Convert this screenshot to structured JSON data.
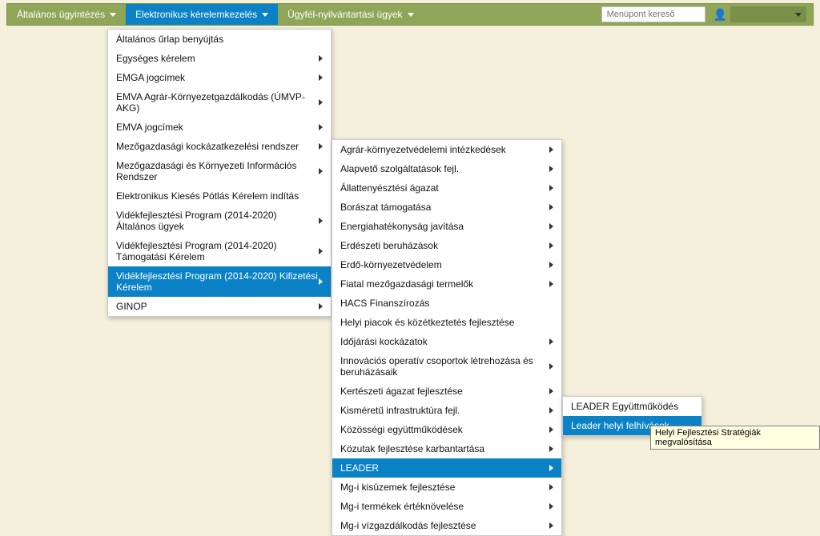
{
  "nav": {
    "item1": "Általános ügyintézés",
    "item2": "Elektronikus kérelemkezelés",
    "item3": "Ügyfél-nyilvántartási ügyek",
    "search_placeholder": "Menüpont kereső"
  },
  "menu1": [
    {
      "label": "Általános űrlap benyújtás",
      "sub": false
    },
    {
      "label": "Egységes kérelem",
      "sub": true
    },
    {
      "label": "EMGA jogcímek",
      "sub": true
    },
    {
      "label": "EMVA Agrár-Környezetgazdálkodás (ÚMVP-AKG)",
      "sub": true
    },
    {
      "label": "EMVA jogcímek",
      "sub": true
    },
    {
      "label": "Mezőgazdasági kockázatkezelési rendszer",
      "sub": true
    },
    {
      "label": "Mezőgazdasági és Környezeti Információs Rendszer",
      "sub": true
    },
    {
      "label": "Elektronikus Kiesés Pótlás Kérelem indítás",
      "sub": false
    },
    {
      "label": "Vidékfejlesztési Program (2014-2020) Általános ügyek",
      "sub": true
    },
    {
      "label": "Vidékfejlesztési Program (2014-2020) Támogatási Kérelem",
      "sub": true
    },
    {
      "label": "Vidékfejlesztési Program (2014-2020) Kifizetési Kérelem",
      "sub": true,
      "selected": true
    },
    {
      "label": "GINOP",
      "sub": true
    }
  ],
  "menu2": [
    {
      "label": "Agrár-környezetvédelemi intézkedések",
      "sub": true
    },
    {
      "label": "Alapvető szolgáltatások fejl.",
      "sub": true
    },
    {
      "label": "Állattenyésztési ágazat",
      "sub": true
    },
    {
      "label": "Borászat támogatása",
      "sub": true
    },
    {
      "label": "Energiahatékonyság javítása",
      "sub": true
    },
    {
      "label": "Erdészeti beruházások",
      "sub": true
    },
    {
      "label": "Erdő-környezetvédelem",
      "sub": true
    },
    {
      "label": "Fiatal mezőgazdasági termelők",
      "sub": true
    },
    {
      "label": "HACS Finanszírozás",
      "sub": false
    },
    {
      "label": "Helyi piacok és közétkeztetés fejlesztése",
      "sub": false
    },
    {
      "label": "Időjárási kockázatok",
      "sub": true
    },
    {
      "label": "Innovációs operatív csoportok létrehozása és beruházásaik",
      "sub": true
    },
    {
      "label": "Kertészeti ágazat fejlesztése",
      "sub": true
    },
    {
      "label": "Kisméretű infrastruktúra fejl.",
      "sub": true
    },
    {
      "label": "Közösségi együttműködések",
      "sub": true
    },
    {
      "label": "Közutak fejlesztése karbantartása",
      "sub": true
    },
    {
      "label": "LEADER",
      "sub": true,
      "selected": true
    },
    {
      "label": "Mg-i kisüzemek fejlesztése",
      "sub": true
    },
    {
      "label": "Mg-i termékek értéknövelése",
      "sub": true
    },
    {
      "label": "Mg-i vízgazdálkodás fejlesztése",
      "sub": true
    }
  ],
  "menu3": [
    {
      "label": "LEADER Együttműködés",
      "sub": false
    },
    {
      "label": "Leader helyi felhívások",
      "sub": false,
      "selected": true
    }
  ],
  "tooltip": "Helyi Fejlesztési Stratégiák megvalósítása"
}
